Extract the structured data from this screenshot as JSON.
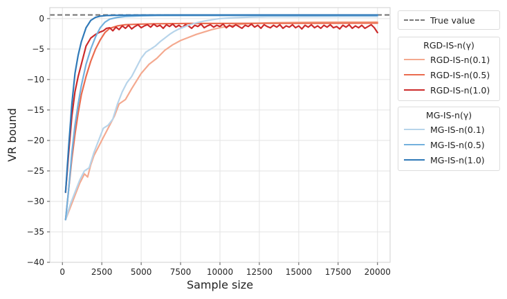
{
  "chart_data": {
    "type": "line",
    "title": "",
    "xlabel": "Sample size",
    "ylabel": "VR bound",
    "xlim": [
      -800,
      20800
    ],
    "ylim": [
      -40,
      1.8
    ],
    "xticks": [
      0,
      2500,
      5000,
      7500,
      10000,
      12500,
      15000,
      17500,
      20000
    ],
    "yticks": [
      0,
      -5,
      -10,
      -15,
      -20,
      -25,
      -30,
      -35,
      -40
    ],
    "grid": true,
    "true_value": {
      "label": "True value",
      "y": 0.6,
      "color": "#777777",
      "style": "dashed"
    },
    "legends": [
      {
        "title": "RGD-IS-n(γ)",
        "placement": "right",
        "entries": [
          "RGD-IS-n(0.1)",
          "RGD-IS-n(0.5)",
          "RGD-IS-n(1.0)"
        ]
      },
      {
        "title": "MG-IS-n(γ)",
        "placement": "right",
        "entries": [
          "MG-IS-n(0.1)",
          "MG-IS-n(0.5)",
          "MG-IS-n(1.0)"
        ]
      }
    ],
    "series": [
      {
        "name": "RGD-IS-n(0.1)",
        "color": "#f4a98f",
        "points": [
          [
            200,
            -33
          ],
          [
            500,
            -31
          ],
          [
            800,
            -29
          ],
          [
            1100,
            -27
          ],
          [
            1400,
            -25.5
          ],
          [
            1600,
            -26
          ],
          [
            1800,
            -24
          ],
          [
            2000,
            -22.5
          ],
          [
            2300,
            -21
          ],
          [
            2600,
            -19.5
          ],
          [
            3000,
            -17.5
          ],
          [
            3300,
            -16
          ],
          [
            3600,
            -14
          ],
          [
            4000,
            -13.3
          ],
          [
            4400,
            -11.5
          ],
          [
            5000,
            -9
          ],
          [
            5500,
            -7.5
          ],
          [
            6000,
            -6.5
          ],
          [
            6500,
            -5.2
          ],
          [
            7000,
            -4.3
          ],
          [
            7500,
            -3.6
          ],
          [
            8000,
            -3.1
          ],
          [
            8500,
            -2.6
          ],
          [
            9000,
            -2.2
          ],
          [
            9500,
            -1.8
          ],
          [
            10000,
            -1.5
          ],
          [
            10500,
            -1.25
          ],
          [
            11000,
            -1.05
          ],
          [
            11500,
            -0.9
          ],
          [
            12000,
            -0.8
          ],
          [
            13000,
            -0.7
          ],
          [
            14000,
            -0.65
          ],
          [
            15000,
            -0.62
          ],
          [
            16000,
            -0.6
          ],
          [
            17000,
            -0.58
          ],
          [
            18000,
            -0.57
          ],
          [
            19000,
            -0.56
          ],
          [
            20000,
            -0.55
          ]
        ]
      },
      {
        "name": "RGD-IS-n(0.5)",
        "color": "#ea6b4e",
        "points": [
          [
            200,
            -33
          ],
          [
            400,
            -28
          ],
          [
            600,
            -23
          ],
          [
            800,
            -19
          ],
          [
            1000,
            -15.5
          ],
          [
            1200,
            -12.5
          ],
          [
            1500,
            -9.5
          ],
          [
            1800,
            -7
          ],
          [
            2100,
            -5
          ],
          [
            2400,
            -3.5
          ],
          [
            2700,
            -2.3
          ],
          [
            3000,
            -1.6
          ],
          [
            3500,
            -1.2
          ],
          [
            4000,
            -1.0
          ],
          [
            5000,
            -0.9
          ],
          [
            6000,
            -0.85
          ],
          [
            7000,
            -0.82
          ],
          [
            8000,
            -0.8
          ],
          [
            10000,
            -0.8
          ],
          [
            12000,
            -0.78
          ],
          [
            14000,
            -0.78
          ],
          [
            16000,
            -0.77
          ],
          [
            18000,
            -0.76
          ],
          [
            20000,
            -0.75
          ]
        ]
      },
      {
        "name": "RGD-IS-n(1.0)",
        "color": "#cc2a2a",
        "points": [
          [
            200,
            -28.5
          ],
          [
            400,
            -22
          ],
          [
            600,
            -16
          ],
          [
            800,
            -12
          ],
          [
            1000,
            -9.5
          ],
          [
            1200,
            -7.5
          ],
          [
            1500,
            -4.5
          ],
          [
            1800,
            -3.2
          ],
          [
            2100,
            -2.6
          ],
          [
            2400,
            -2.2
          ],
          [
            2600,
            -2.0
          ],
          [
            2800,
            -1.6
          ],
          [
            3000,
            -1.5
          ],
          [
            3200,
            -2.0
          ],
          [
            3400,
            -1.4
          ],
          [
            3600,
            -1.8
          ],
          [
            3800,
            -1.2
          ],
          [
            4000,
            -1.6
          ],
          [
            4200,
            -1.1
          ],
          [
            4400,
            -1.7
          ],
          [
            4600,
            -1.3
          ],
          [
            4800,
            -1.0
          ],
          [
            5000,
            -1.5
          ],
          [
            5200,
            -1.2
          ],
          [
            5400,
            -1.0
          ],
          [
            5600,
            -1.4
          ],
          [
            5800,
            -0.9
          ],
          [
            6000,
            -1.3
          ],
          [
            6200,
            -1.1
          ],
          [
            6400,
            -1.6
          ],
          [
            6600,
            -1.0
          ],
          [
            6800,
            -1.3
          ],
          [
            7000,
            -0.9
          ],
          [
            7200,
            -1.4
          ],
          [
            7400,
            -1.1
          ],
          [
            7600,
            -1.5
          ],
          [
            7800,
            -1.0
          ],
          [
            8000,
            -1.2
          ],
          [
            8200,
            -1.6
          ],
          [
            8400,
            -1.1
          ],
          [
            8600,
            -1.3
          ],
          [
            8800,
            -0.9
          ],
          [
            9000,
            -1.5
          ],
          [
            9200,
            -1.2
          ],
          [
            9400,
            -1.0
          ],
          [
            9600,
            -1.4
          ],
          [
            9800,
            -1.1
          ],
          [
            10000,
            -1.3
          ],
          [
            10200,
            -0.9
          ],
          [
            10400,
            -1.5
          ],
          [
            10600,
            -1.1
          ],
          [
            10800,
            -1.4
          ],
          [
            11000,
            -1.0
          ],
          [
            11200,
            -1.3
          ],
          [
            11400,
            -1.6
          ],
          [
            11600,
            -1.1
          ],
          [
            11800,
            -1.3
          ],
          [
            12000,
            -0.9
          ],
          [
            12200,
            -1.4
          ],
          [
            12400,
            -1.1
          ],
          [
            12600,
            -1.6
          ],
          [
            12800,
            -1.0
          ],
          [
            13000,
            -1.3
          ],
          [
            13200,
            -1.5
          ],
          [
            13400,
            -1.1
          ],
          [
            13600,
            -1.4
          ],
          [
            13800,
            -1.0
          ],
          [
            14000,
            -1.6
          ],
          [
            14200,
            -1.2
          ],
          [
            14400,
            -1.4
          ],
          [
            14600,
            -1.0
          ],
          [
            14800,
            -1.5
          ],
          [
            15000,
            -1.2
          ],
          [
            15200,
            -1.7
          ],
          [
            15400,
            -1.1
          ],
          [
            15600,
            -1.4
          ],
          [
            15800,
            -1.0
          ],
          [
            16000,
            -1.5
          ],
          [
            16200,
            -1.2
          ],
          [
            16400,
            -1.6
          ],
          [
            16600,
            -1.1
          ],
          [
            16800,
            -1.4
          ],
          [
            17000,
            -1.0
          ],
          [
            17200,
            -1.5
          ],
          [
            17400,
            -1.3
          ],
          [
            17600,
            -1.7
          ],
          [
            17800,
            -1.1
          ],
          [
            18000,
            -1.4
          ],
          [
            18200,
            -1.0
          ],
          [
            18400,
            -1.6
          ],
          [
            18600,
            -1.2
          ],
          [
            18800,
            -1.5
          ],
          [
            19000,
            -1.1
          ],
          [
            19200,
            -1.6
          ],
          [
            19400,
            -1.3
          ],
          [
            19600,
            -1.0
          ],
          [
            19800,
            -1.5
          ],
          [
            20000,
            -2.3
          ]
        ]
      },
      {
        "name": "MG-IS-n(0.1)",
        "color": "#b7d4ea",
        "points": [
          [
            200,
            -33
          ],
          [
            500,
            -30.5
          ],
          [
            800,
            -28.5
          ],
          [
            1100,
            -26.5
          ],
          [
            1400,
            -25
          ],
          [
            1700,
            -24.5
          ],
          [
            2000,
            -22
          ],
          [
            2300,
            -20
          ],
          [
            2600,
            -18
          ],
          [
            2900,
            -17.5
          ],
          [
            3200,
            -16.5
          ],
          [
            3500,
            -14
          ],
          [
            3800,
            -12
          ],
          [
            4100,
            -10.5
          ],
          [
            4400,
            -9.5
          ],
          [
            4700,
            -8
          ],
          [
            5000,
            -6.5
          ],
          [
            5300,
            -5.5
          ],
          [
            5600,
            -5
          ],
          [
            5900,
            -4.5
          ],
          [
            6200,
            -3.8
          ],
          [
            6500,
            -3.2
          ],
          [
            6800,
            -2.6
          ],
          [
            7100,
            -2.1
          ],
          [
            7400,
            -1.7
          ],
          [
            7700,
            -1.4
          ],
          [
            8000,
            -1.1
          ],
          [
            8500,
            -0.7
          ],
          [
            9000,
            -0.4
          ],
          [
            9500,
            -0.2
          ],
          [
            10000,
            0.0
          ],
          [
            11000,
            0.15
          ],
          [
            12000,
            0.25
          ],
          [
            13000,
            0.3
          ],
          [
            14000,
            0.3
          ],
          [
            16000,
            0.32
          ],
          [
            18000,
            0.33
          ],
          [
            20000,
            0.33
          ]
        ]
      },
      {
        "name": "MG-IS-n(0.5)",
        "color": "#73b0dd",
        "points": [
          [
            200,
            -33
          ],
          [
            400,
            -28
          ],
          [
            600,
            -22
          ],
          [
            800,
            -17.5
          ],
          [
            1000,
            -14
          ],
          [
            1200,
            -11
          ],
          [
            1500,
            -7.5
          ],
          [
            1800,
            -5
          ],
          [
            2100,
            -3
          ],
          [
            2400,
            -1.5
          ],
          [
            2700,
            -0.6
          ],
          [
            3000,
            -0.1
          ],
          [
            3500,
            0.2
          ],
          [
            4000,
            0.35
          ],
          [
            5000,
            0.45
          ],
          [
            6000,
            0.5
          ],
          [
            8000,
            0.5
          ],
          [
            10000,
            0.5
          ],
          [
            12000,
            0.52
          ],
          [
            14000,
            0.52
          ],
          [
            16000,
            0.52
          ],
          [
            18000,
            0.53
          ],
          [
            20000,
            0.53
          ]
        ]
      },
      {
        "name": "MG-IS-n(1.0)",
        "color": "#2f79b8",
        "points": [
          [
            200,
            -28.5
          ],
          [
            400,
            -21
          ],
          [
            600,
            -14
          ],
          [
            800,
            -9
          ],
          [
            1000,
            -6
          ],
          [
            1200,
            -3.8
          ],
          [
            1500,
            -1.5
          ],
          [
            1800,
            -0.3
          ],
          [
            2100,
            0.2
          ],
          [
            2400,
            0.4
          ],
          [
            2800,
            0.5
          ],
          [
            3500,
            0.55
          ],
          [
            5000,
            0.58
          ],
          [
            8000,
            0.6
          ],
          [
            12000,
            0.6
          ],
          [
            16000,
            0.6
          ],
          [
            20000,
            0.6
          ]
        ]
      }
    ]
  }
}
